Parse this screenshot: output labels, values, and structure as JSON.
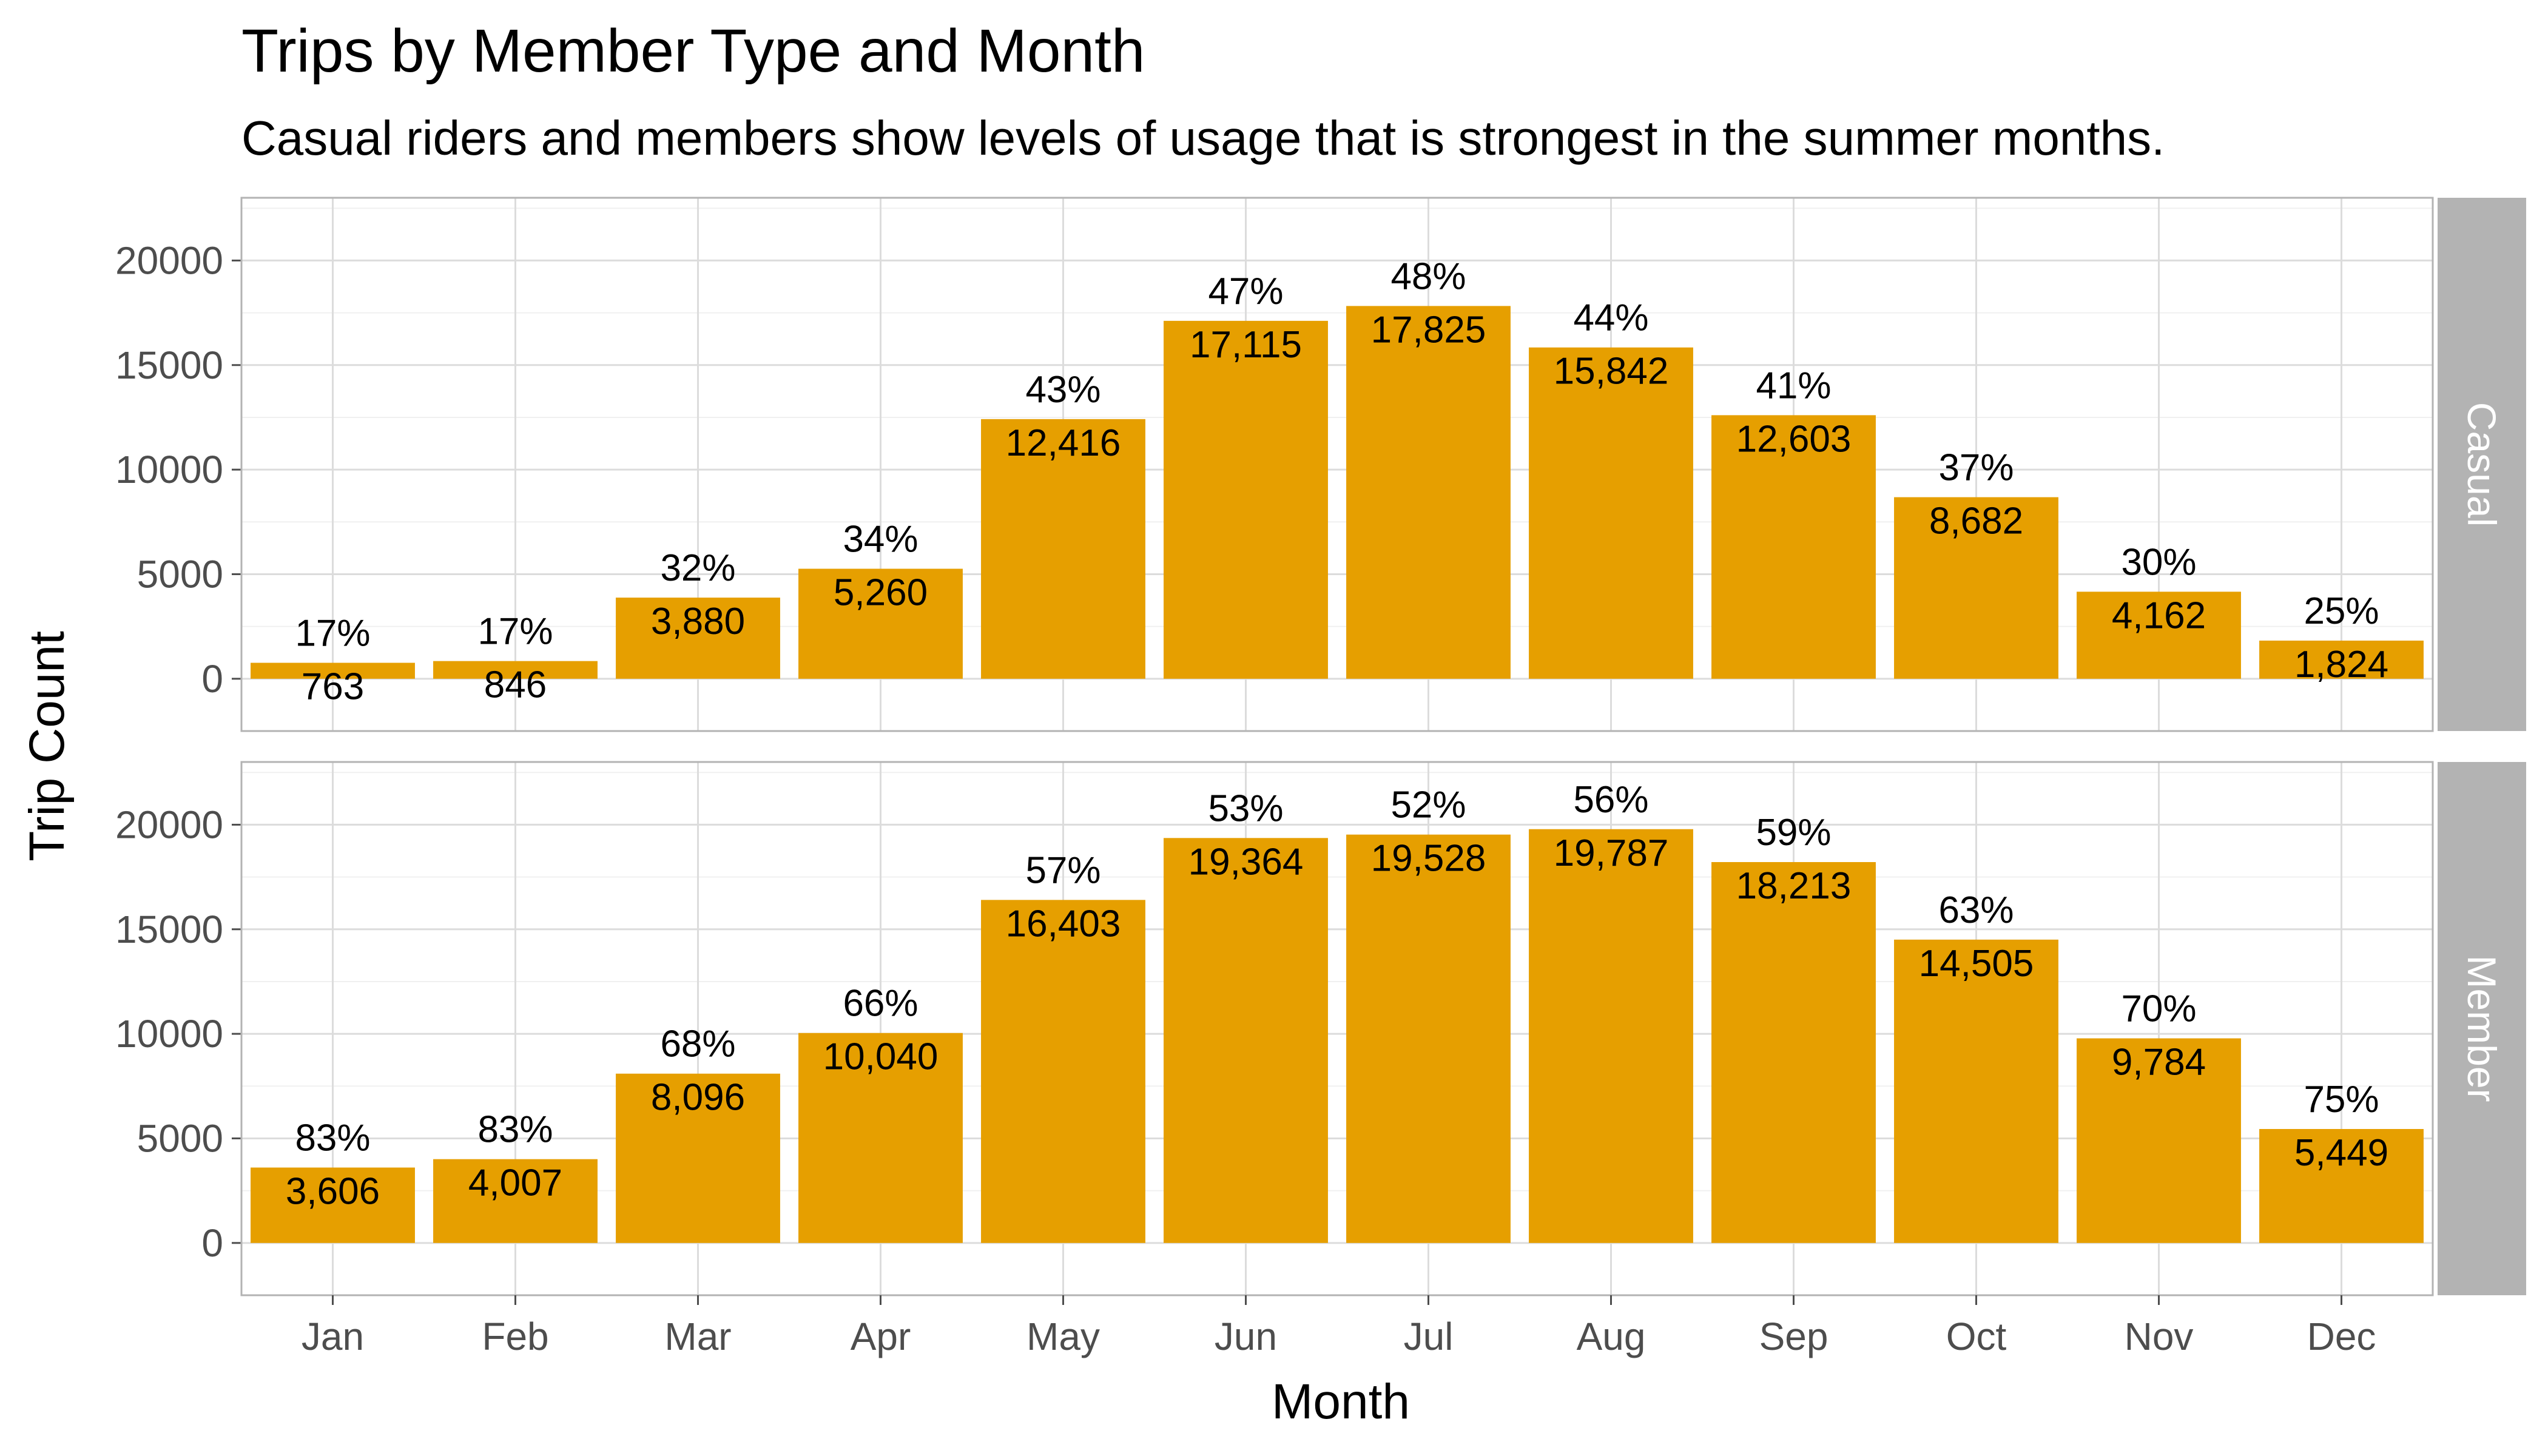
{
  "title": "Trips by Member Type and Month",
  "subtitle": "Casual riders and members show levels of usage that is strongest in the summer months.",
  "chart_data": {
    "type": "bar",
    "facet_by": "member_type",
    "xlabel": "Month",
    "ylabel": "Trip Count",
    "ylim": [
      -2500,
      23000
    ],
    "yticks": [
      0,
      5000,
      10000,
      15000,
      20000
    ],
    "grid": true,
    "bar_color": "#E69F00",
    "categories": [
      "Jan",
      "Feb",
      "Mar",
      "Apr",
      "May",
      "Jun",
      "Jul",
      "Aug",
      "Sep",
      "Oct",
      "Nov",
      "Dec"
    ],
    "panels": [
      {
        "strip": "Casual",
        "values": [
          763,
          846,
          3880,
          5260,
          12416,
          17115,
          17825,
          15842,
          12603,
          8682,
          4162,
          1824
        ],
        "value_labels": [
          "763",
          "846",
          "3,880",
          "5,260",
          "12,416",
          "17,115",
          "17,825",
          "15,842",
          "12,603",
          "8,682",
          "4,162",
          "1,824"
        ],
        "percent_labels": [
          "17%",
          "17%",
          "32%",
          "34%",
          "43%",
          "47%",
          "48%",
          "44%",
          "41%",
          "37%",
          "30%",
          "25%"
        ]
      },
      {
        "strip": "Member",
        "values": [
          3606,
          4007,
          8096,
          10040,
          16403,
          19364,
          19528,
          19787,
          18213,
          14505,
          9784,
          5449
        ],
        "value_labels": [
          "3,606",
          "4,007",
          "8,096",
          "10,040",
          "16,403",
          "19,364",
          "19,528",
          "19,787",
          "18,213",
          "14,505",
          "9,784",
          "5,449"
        ],
        "percent_labels": [
          "83%",
          "83%",
          "68%",
          "66%",
          "57%",
          "53%",
          "52%",
          "56%",
          "59%",
          "63%",
          "70%",
          "75%"
        ]
      }
    ]
  }
}
